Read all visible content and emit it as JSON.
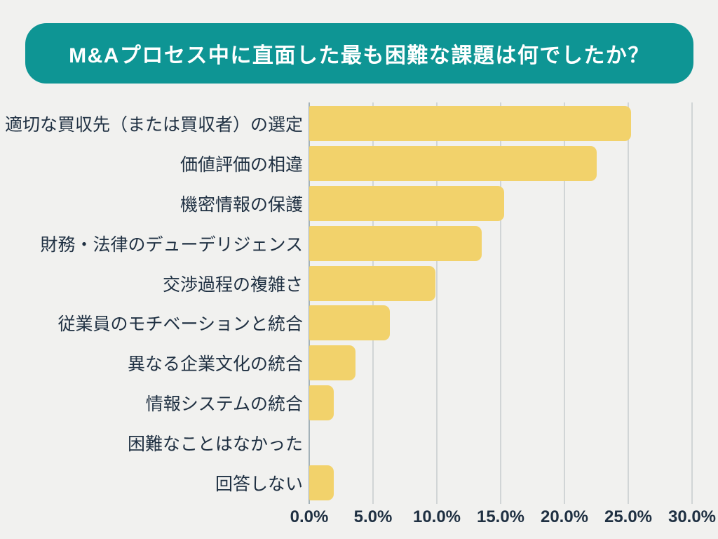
{
  "title": "M&Aプロセス中に直面した最も困難な課題は何でしたか？",
  "colors": {
    "background": "#F1F1EF",
    "banner_teal": "#0E9594",
    "title_text": "#FFFFFF",
    "bar_yellow": "#F2D26B",
    "label_text": "#1F3042",
    "gridline": "#D1D5D6",
    "axis_line": "#A4B2B9"
  },
  "chart_data": {
    "type": "bar",
    "orientation": "horizontal",
    "title": "M&Aプロセス中に直面した最も困難な課題は何でしたか？",
    "categories": [
      "適切な買収先（または買収者）の選定",
      "価値評価の相違",
      "機密情報の保護",
      "財務・法律のデューデリジェンス",
      "交渉過程の複雑さ",
      "従業員のモチベーションと統合",
      "異なる企業文化の統合",
      "情報システムの統合",
      "困難なことはなかった",
      "回答しない"
    ],
    "values": [
      25.2,
      22.5,
      15.3,
      13.5,
      9.9,
      6.3,
      3.6,
      1.9,
      0.0,
      1.9
    ],
    "unit": "%",
    "xlabel": "",
    "ylabel": "",
    "xlim": [
      0,
      30
    ],
    "x_ticks": [
      0,
      5,
      10,
      15,
      20,
      25,
      30
    ],
    "x_tick_labels": [
      "0.0%",
      "5.0%",
      "10.0%",
      "15.0%",
      "20.0%",
      "25.0%",
      "30.0%"
    ],
    "grid": true,
    "legend": false
  }
}
